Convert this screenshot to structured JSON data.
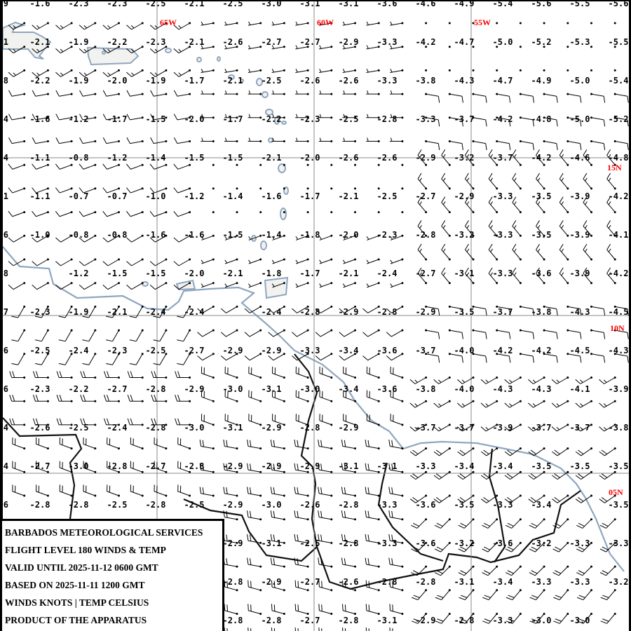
{
  "title_block": {
    "lines": [
      "BARBADOS METEOROLOGICAL SERVICES",
      "FLIGHT LEVEL 180 WINDS & TEMP",
      "VALID UNTIL 2025-11-12 0600 GMT",
      "BASED ON 2025-11-11 1200 GMT",
      "WINDS KNOTS | TEMP CELSIUS",
      "PRODUCT OF THE APPARATUS"
    ]
  },
  "grid_labels": {
    "lon": [
      "65W",
      "60W",
      "55W"
    ],
    "lat": [
      "15N",
      "10N",
      "05N"
    ]
  },
  "colors": {
    "grid_label": "#ff0000",
    "coastline": "#8fa6bf",
    "border": "#111111",
    "gridline": "#888888"
  },
  "temperatures_celsius": [
    [
      "9",
      "-1.6",
      "-2.3",
      "-2.3",
      "-2.5",
      "-2.1",
      "-2.5",
      "-3.0",
      "-3.1",
      "-3.1",
      "-3.6",
      "-4.6",
      "-4.9",
      "-5.4",
      "-5.6",
      "-5.5",
      "-5.6"
    ],
    [
      "1",
      "-2.1",
      "-1.9",
      "-2.2",
      "-2.3",
      "-2.1",
      "-2.6",
      "-2.7",
      "-2.7",
      "-2.9",
      "-3.3",
      "-4.2",
      "-4.7",
      "-5.0",
      "-5.2",
      "-5.3",
      "-5.5"
    ],
    [
      "8",
      "-2.2",
      "-1.9",
      "-2.0",
      "-1.9",
      "-1.7",
      "-2.1",
      "-2.5",
      "-2.6",
      "-2.6",
      "-3.3",
      "-3.8",
      "-4.3",
      "-4.7",
      "-4.9",
      "-5.0",
      "-5.4"
    ],
    [
      "4",
      "-1.6",
      "-1.2",
      "-1.7",
      "-1.5",
      "-2.0",
      "-1.7",
      "-2.2",
      "-2.3",
      "-2.5",
      "-2.8",
      "-3.3",
      "-3.7",
      "-4.2",
      "-4.8",
      "-5.0",
      "-5.2"
    ],
    [
      "4",
      "-1.1",
      "-0.8",
      "-1.2",
      "-1.4",
      "-1.5",
      "-1.5",
      "-2.1",
      "-2.0",
      "-2.6",
      "-2.6",
      "-2.9",
      "-3.2",
      "-3.7",
      "-4.2",
      "-4.6",
      "-4.8"
    ],
    [
      "1",
      "-1.1",
      "-0.7",
      "-0.7",
      "-1.0",
      "-1.2",
      "-1.4",
      "-1.6",
      "-1.7",
      "-2.1",
      "-2.5",
      "-2.7",
      "-2.9",
      "-3.3",
      "-3.5",
      "-3.9",
      "-4.2"
    ],
    [
      "6",
      "-1.0",
      "-0.8",
      "-0.8",
      "-1.6",
      "-1.6",
      "-1.5",
      "-1.4",
      "-1.8",
      "-2.0",
      "-2.3",
      "-2.8",
      "-3.2",
      "-3.3",
      "-3.5",
      "-3.9",
      "-4.1"
    ],
    [
      "8",
      null,
      "-1.2",
      "-1.5",
      "-1.5",
      "-2.0",
      "-2.1",
      "-1.8",
      "-1.7",
      "-2.1",
      "-2.4",
      "-2.7",
      "-3.1",
      "-3.3",
      "-3.6",
      "-3.9",
      "-4.2"
    ],
    [
      "7",
      "-2.3",
      "-1.9",
      "-2.1",
      "-2.4",
      "-2.4",
      null,
      "-2.4",
      "-2.8",
      "-2.9",
      "-2.8",
      "-2.9",
      "-3.5",
      "-3.7",
      "-3.8",
      "-4.3",
      "-4.5"
    ],
    [
      "6",
      "-2.5",
      "-2.4",
      "-2.3",
      "-2.5",
      "-2.7",
      "-2.9",
      "-2.9",
      "-3.3",
      "-3.4",
      "-3.6",
      "-3.7",
      "-4.0",
      "-4.2",
      "-4.2",
      "-4.5",
      "-4.3"
    ],
    [
      "6",
      "-2.3",
      "-2.2",
      "-2.7",
      "-2.8",
      "-2.9",
      "-3.0",
      "-3.1",
      "-3.0",
      "-3.4",
      "-3.6",
      "-3.8",
      "-4.0",
      "-4.3",
      "-4.3",
      "-4.1",
      "-3.9"
    ],
    [
      "4",
      "-2.6",
      "-2.5",
      "-2.4",
      "-2.8",
      "-3.0",
      "-3.1",
      "-2.9",
      "-2.8",
      "-2.9",
      null,
      "-3.7",
      "-3.7",
      "-3.9",
      "-3.7",
      "-3.7",
      "-3.8"
    ],
    [
      "4",
      "-2.7",
      "-3.0",
      "-2.8",
      "-2.7",
      "-2.8",
      "-2.9",
      "-2.9",
      "-2.9",
      "-3.1",
      "-3.1",
      "-3.3",
      "-3.4",
      "-3.4",
      "-3.5",
      "-3.5",
      "-3.5"
    ],
    [
      "6",
      "-2.8",
      "-2.8",
      "-2.5",
      "-2.8",
      "-2.5",
      "-2.9",
      "-3.0",
      "-2.6",
      "-2.8",
      "-3.3",
      "-3.6",
      "-3.5",
      "-3.3",
      "-3.4",
      null,
      "-3.5"
    ],
    [
      null,
      null,
      null,
      null,
      null,
      null,
      "-2.9",
      "-3.1",
      "-2.5",
      "-2.8",
      "-3.3",
      "-3.6",
      "-3.2",
      "-3.6",
      "-3.2",
      "-3.3",
      "-3.3"
    ],
    [
      null,
      null,
      null,
      null,
      null,
      null,
      "-2.8",
      "-2.9",
      "-2.7",
      "-2.6",
      "-2.8",
      "-2.8",
      "-3.1",
      "-3.4",
      "-3.3",
      "-3.3",
      "-3.2"
    ],
    [
      null,
      null,
      null,
      null,
      null,
      null,
      "-2.8",
      "-2.8",
      "-2.7",
      "-2.8",
      "-3.1",
      "-2.9",
      "-2.8",
      "-3.3",
      "-3.0",
      "-3.0",
      null
    ]
  ],
  "winds_knots_coarse": [
    [
      {
        "dir": 240,
        "spd": 15
      },
      {
        "dir": 260,
        "spd": 5
      },
      {
        "dir": 0,
        "spd": 0
      }
    ],
    [
      {
        "dir": 260,
        "spd": 10
      },
      {
        "dir": 270,
        "spd": 5
      },
      {
        "dir": 100,
        "spd": 10
      }
    ],
    [
      {
        "dir": 250,
        "spd": 10
      },
      {
        "dir": 0,
        "spd": 0
      },
      {
        "dir": 320,
        "spd": 15
      }
    ],
    [
      {
        "dir": 240,
        "spd": 10
      },
      {
        "dir": 250,
        "spd": 5
      },
      {
        "dir": 320,
        "spd": 15
      }
    ],
    [
      {
        "dir": 210,
        "spd": 10
      },
      {
        "dir": 240,
        "spd": 10
      },
      {
        "dir": 100,
        "spd": 10
      }
    ],
    [
      {
        "dir": 270,
        "spd": 20
      },
      {
        "dir": 290,
        "spd": 20
      },
      {
        "dir": 240,
        "spd": 15
      }
    ],
    [
      {
        "dir": 290,
        "spd": 20
      },
      {
        "dir": 280,
        "spd": 20
      },
      {
        "dir": 235,
        "spd": 20
      }
    ],
    [
      {
        "dir": 290,
        "spd": 20
      },
      {
        "dir": 280,
        "spd": 20
      },
      {
        "dir": 225,
        "spd": 20
      }
    ],
    [
      {
        "dir": 290,
        "spd": 20
      },
      {
        "dir": 285,
        "spd": 20
      },
      {
        "dir": 220,
        "spd": 20
      }
    ]
  ]
}
